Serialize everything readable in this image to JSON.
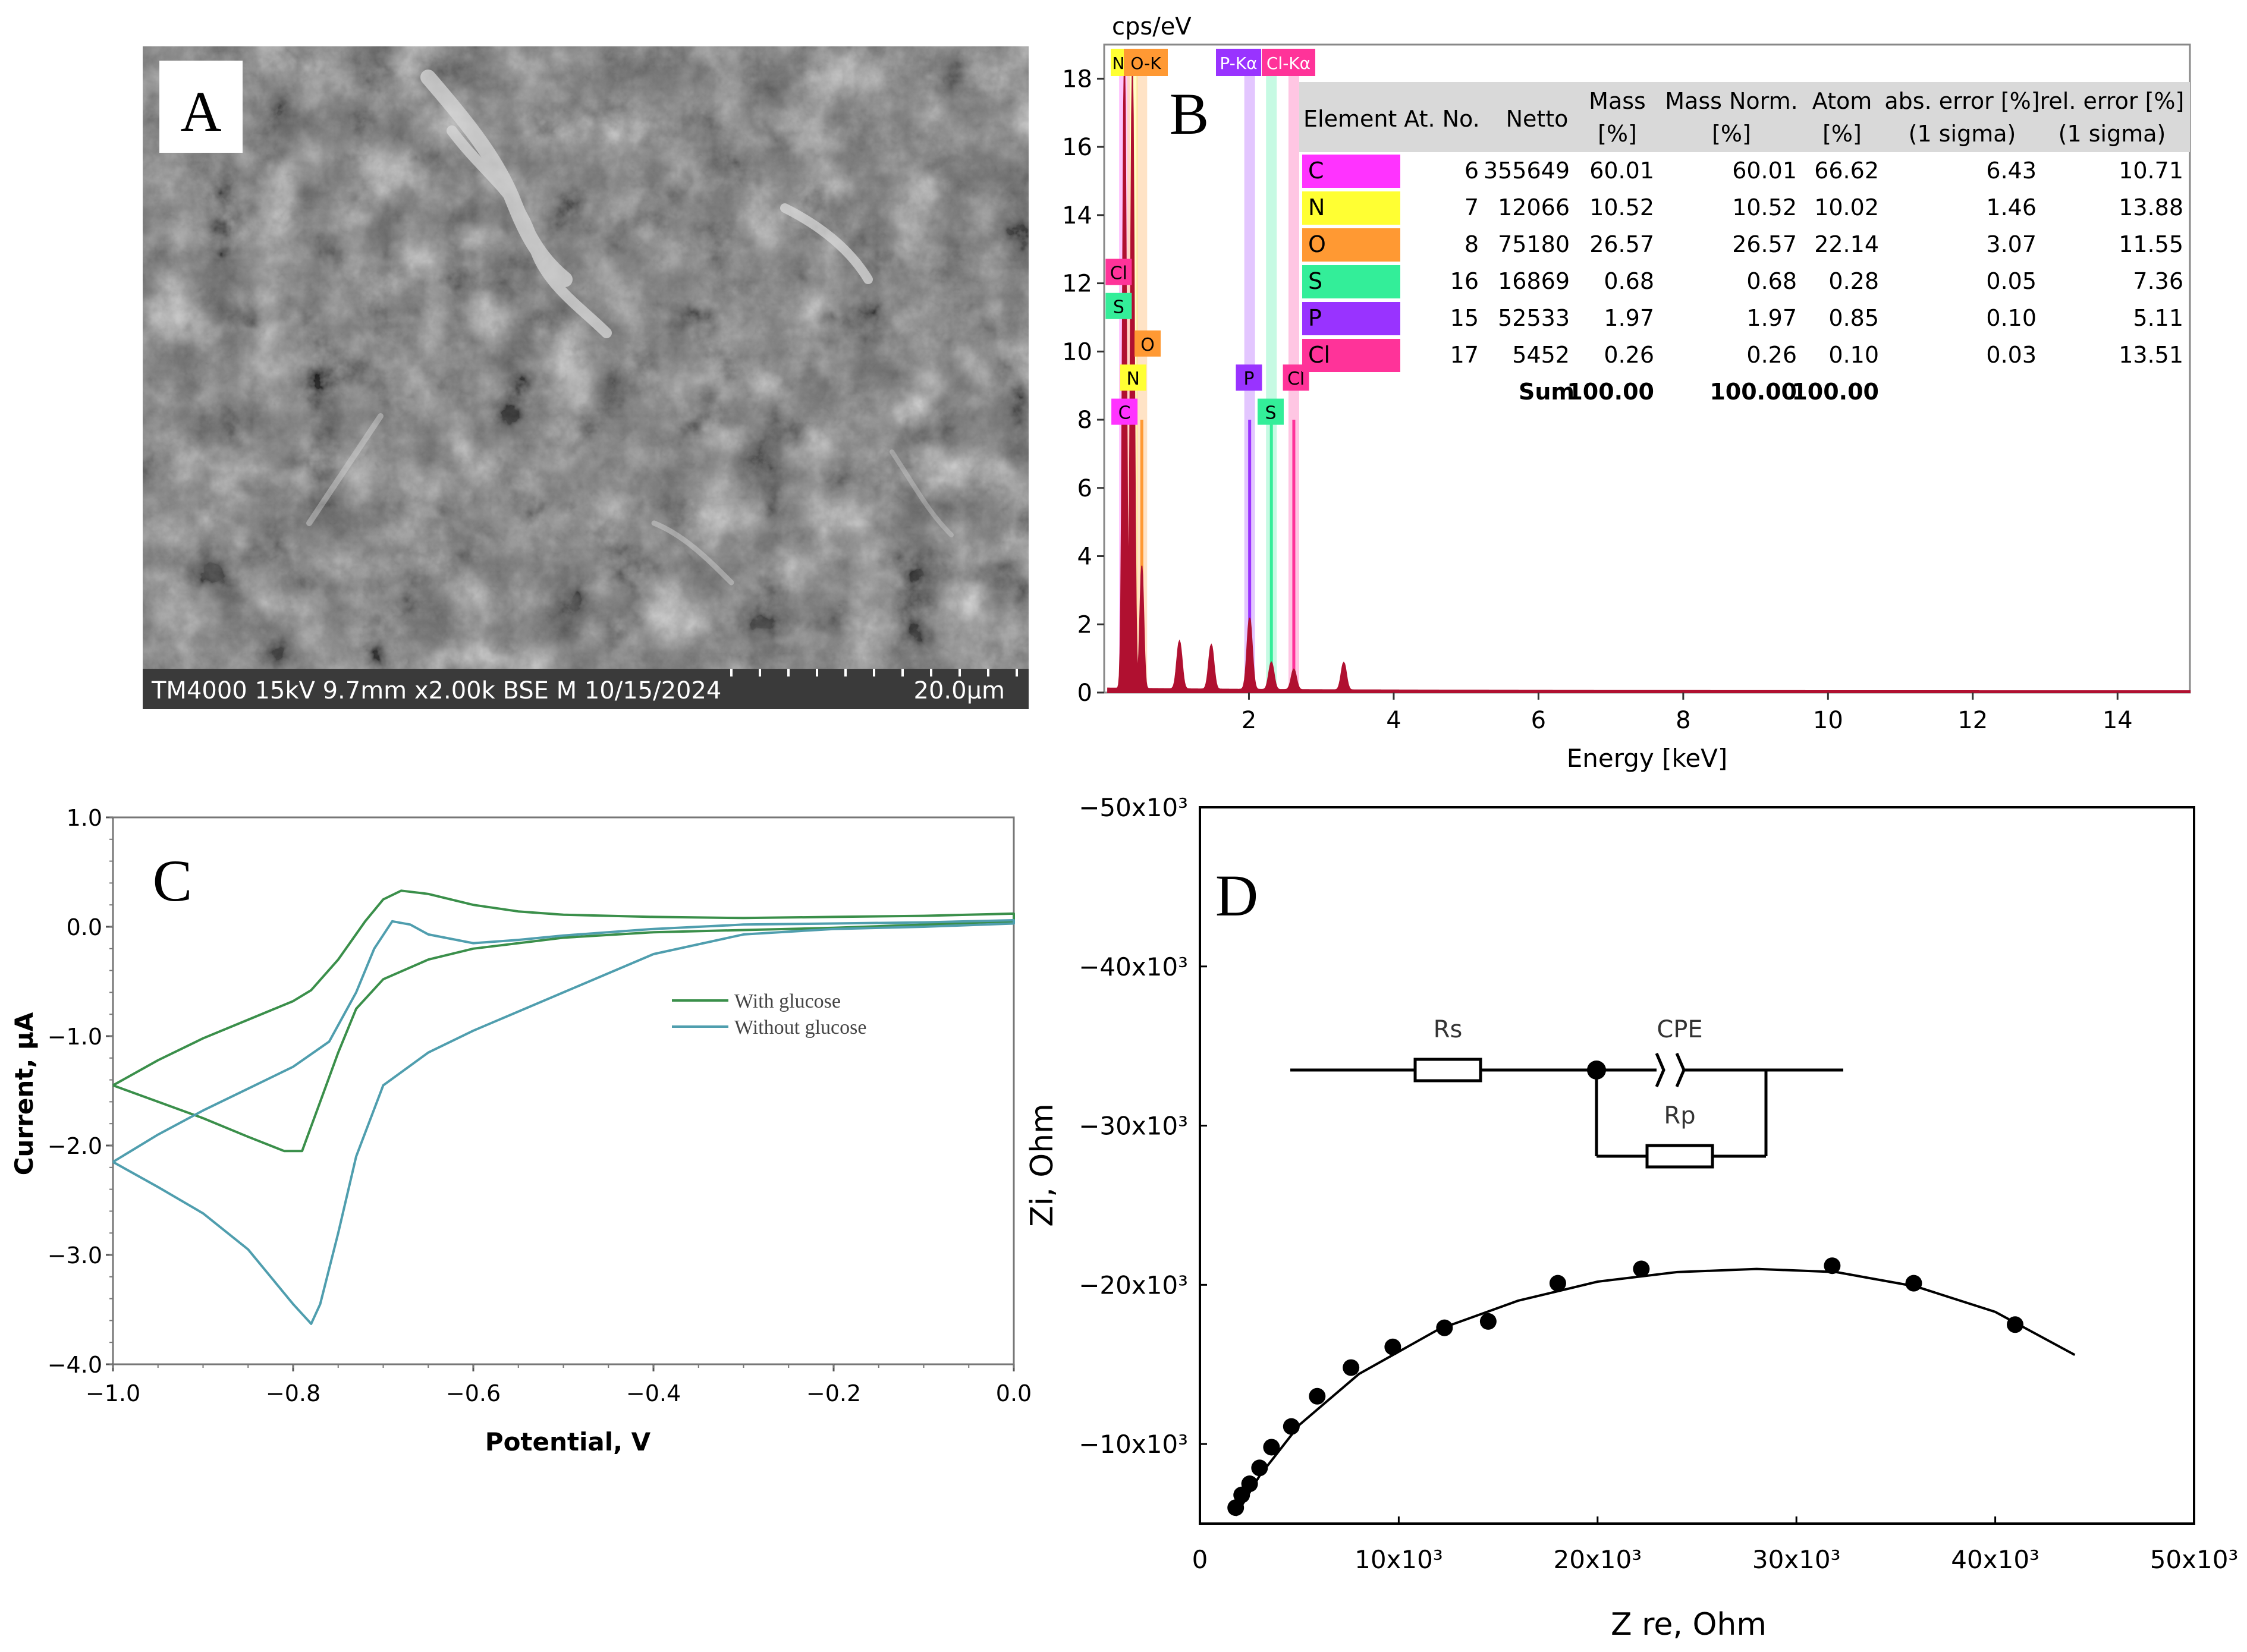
{
  "panels": {
    "A": {
      "label": "A",
      "sem_info": "TM4000 15kV 9.7mm x2.00k BSE M 10/15/2024",
      "scale_bar": "20.0μm"
    },
    "B": {
      "label": "B"
    },
    "C": {
      "label": "C"
    },
    "D": {
      "label": "D"
    }
  },
  "circuit": {
    "rs": "Rs",
    "cpe": "CPE",
    "rp": "Rp"
  },
  "colors": {
    "spectrum_red": "#b01030",
    "c_band": "#ff33ff",
    "n_band": "#ffff33",
    "o_band": "#ff9933",
    "s_band": "#33ee99",
    "p_band": "#9933ff",
    "cl_band": "#ff3399",
    "with_glucose": "#3a8f4a",
    "without_glucose": "#4f9eae"
  },
  "chart_data": [
    {
      "id": "B",
      "type": "area",
      "title": "",
      "ylabel": "cps/eV",
      "xlabel": "Energy [keV]",
      "xlim": [
        0,
        15
      ],
      "ylim": [
        0,
        19
      ],
      "xticks": [
        "2",
        "4",
        "6",
        "8",
        "10",
        "12",
        "14"
      ],
      "yticks": [
        "0",
        "2",
        "4",
        "6",
        "8",
        "10",
        "12",
        "14",
        "16",
        "18"
      ],
      "peaks": [
        {
          "x": 0.28,
          "y": 18.5
        },
        {
          "x": 0.39,
          "y": 18.2
        },
        {
          "x": 0.52,
          "y": 3.6
        },
        {
          "x": 1.04,
          "y": 1.4
        },
        {
          "x": 1.48,
          "y": 1.3
        },
        {
          "x": 2.01,
          "y": 2.1
        },
        {
          "x": 2.31,
          "y": 0.8
        },
        {
          "x": 2.62,
          "y": 0.6
        },
        {
          "x": 3.31,
          "y": 0.8
        }
      ],
      "element_lines": [
        {
          "element": "C",
          "energy": 0.28,
          "color": "#ff33ff"
        },
        {
          "element": "N",
          "energy": 0.39,
          "color": "#ffff33"
        },
        {
          "element": "O",
          "energy": 0.52,
          "color": "#ff9933"
        },
        {
          "element": "P",
          "energy": 2.01,
          "color": "#9933ff"
        },
        {
          "element": "S",
          "energy": 2.31,
          "color": "#33ee99"
        },
        {
          "element": "Cl",
          "energy": 2.62,
          "color": "#ff3399"
        }
      ],
      "top_labels": [
        "N",
        "O-K",
        "P-Kα",
        "Cl-Kα"
      ],
      "marker_labels": [
        {
          "text": "Cl",
          "energy": 0.2,
          "y": 12.3,
          "color": "#ff3399"
        },
        {
          "text": "S",
          "energy": 0.2,
          "y": 11.3,
          "color": "#33ee99"
        },
        {
          "text": "O",
          "energy": 0.6,
          "y": 10.2,
          "color": "#ff9933"
        },
        {
          "text": "N",
          "energy": 0.4,
          "y": 9.2,
          "color": "#ffff33"
        },
        {
          "text": "C",
          "energy": 0.28,
          "y": 8.2,
          "color": "#ff33ff"
        },
        {
          "text": "P",
          "energy": 2.0,
          "y": 9.2,
          "color": "#9933ff"
        },
        {
          "text": "Cl",
          "energy": 2.65,
          "y": 9.2,
          "color": "#ff3399"
        },
        {
          "text": "S",
          "energy": 2.3,
          "y": 8.2,
          "color": "#33ee99"
        }
      ],
      "table": {
        "headers": [
          [
            "Element",
            ""
          ],
          [
            "At. No.",
            ""
          ],
          [
            "Netto",
            ""
          ],
          [
            "Mass",
            "[%]"
          ],
          [
            "Mass Norm.",
            "[%]"
          ],
          [
            "Atom",
            "[%]"
          ],
          [
            "abs. error [%]",
            "(1 sigma)"
          ],
          [
            "rel. error [%]",
            "(1 sigma)"
          ]
        ],
        "rows": [
          {
            "element": "C",
            "color": "#ff33ff",
            "cells": [
              "6",
              "355649",
              "60.01",
              "60.01",
              "66.62",
              "6.43",
              "10.71"
            ]
          },
          {
            "element": "N",
            "color": "#ffff33",
            "cells": [
              "7",
              "12066",
              "10.52",
              "10.52",
              "10.02",
              "1.46",
              "13.88"
            ]
          },
          {
            "element": "O",
            "color": "#ff9933",
            "cells": [
              "8",
              "75180",
              "26.57",
              "26.57",
              "22.14",
              "3.07",
              "11.55"
            ]
          },
          {
            "element": "S",
            "color": "#33ee99",
            "cells": [
              "16",
              "16869",
              "0.68",
              "0.68",
              "0.28",
              "0.05",
              "7.36"
            ]
          },
          {
            "element": "P",
            "color": "#9933ff",
            "cells": [
              "15",
              "52533",
              "1.97",
              "1.97",
              "0.85",
              "0.10",
              "5.11"
            ]
          },
          {
            "element": "Cl",
            "color": "#ff3399",
            "cells": [
              "17",
              "5452",
              "0.26",
              "0.26",
              "0.10",
              "0.03",
              "13.51"
            ]
          }
        ],
        "sum": [
          "Sum",
          "100.00",
          "100.00",
          "100.00"
        ]
      }
    },
    {
      "id": "C",
      "type": "line",
      "title": "",
      "xlabel": "Potential, V",
      "ylabel": "Current, μA",
      "xlim": [
        -1.0,
        0.0
      ],
      "ylim": [
        -4.0,
        1.0
      ],
      "xticks": [
        "−1.0",
        "−0.8",
        "−0.6",
        "−0.4",
        "−0.2",
        "0.0"
      ],
      "yticks": [
        "1.0",
        "0.0",
        "−1.0",
        "−2.0",
        "−3.0",
        "−4.0"
      ],
      "series": [
        {
          "name": "With glucose",
          "color": "#3a8f4a",
          "points": [
            [
              -1.0,
              -1.45
            ],
            [
              -0.95,
              -1.22
            ],
            [
              -0.9,
              -1.02
            ],
            [
              -0.85,
              -0.85
            ],
            [
              -0.8,
              -0.68
            ],
            [
              -0.78,
              -0.58
            ],
            [
              -0.75,
              -0.3
            ],
            [
              -0.72,
              0.05
            ],
            [
              -0.7,
              0.25
            ],
            [
              -0.68,
              0.33
            ],
            [
              -0.65,
              0.3
            ],
            [
              -0.6,
              0.2
            ],
            [
              -0.55,
              0.14
            ],
            [
              -0.5,
              0.11
            ],
            [
              -0.4,
              0.09
            ],
            [
              -0.3,
              0.08
            ],
            [
              -0.2,
              0.09
            ],
            [
              -0.1,
              0.1
            ],
            [
              0.0,
              0.12
            ],
            [
              0.0,
              0.05
            ],
            [
              -0.1,
              0.02
            ],
            [
              -0.2,
              -0.01
            ],
            [
              -0.3,
              -0.03
            ],
            [
              -0.4,
              -0.05
            ],
            [
              -0.5,
              -0.1
            ],
            [
              -0.6,
              -0.2
            ],
            [
              -0.65,
              -0.3
            ],
            [
              -0.7,
              -0.48
            ],
            [
              -0.73,
              -0.75
            ],
            [
              -0.75,
              -1.15
            ],
            [
              -0.77,
              -1.6
            ],
            [
              -0.79,
              -2.05
            ],
            [
              -0.81,
              -2.05
            ],
            [
              -0.85,
              -1.92
            ],
            [
              -0.9,
              -1.75
            ],
            [
              -0.95,
              -1.6
            ],
            [
              -1.0,
              -1.45
            ]
          ]
        },
        {
          "name": "Without glucose",
          "color": "#4f9eae",
          "points": [
            [
              -1.0,
              -2.15
            ],
            [
              -0.95,
              -1.9
            ],
            [
              -0.9,
              -1.68
            ],
            [
              -0.85,
              -1.48
            ],
            [
              -0.8,
              -1.28
            ],
            [
              -0.76,
              -1.05
            ],
            [
              -0.73,
              -0.6
            ],
            [
              -0.71,
              -0.2
            ],
            [
              -0.69,
              0.05
            ],
            [
              -0.67,
              0.02
            ],
            [
              -0.65,
              -0.07
            ],
            [
              -0.6,
              -0.15
            ],
            [
              -0.55,
              -0.12
            ],
            [
              -0.5,
              -0.08
            ],
            [
              -0.4,
              -0.02
            ],
            [
              -0.3,
              0.02
            ],
            [
              -0.2,
              0.03
            ],
            [
              -0.1,
              0.04
            ],
            [
              0.0,
              0.06
            ],
            [
              0.0,
              0.03
            ],
            [
              -0.1,
              0.0
            ],
            [
              -0.2,
              -0.02
            ],
            [
              -0.3,
              -0.07
            ],
            [
              -0.4,
              -0.25
            ],
            [
              -0.5,
              -0.6
            ],
            [
              -0.6,
              -0.95
            ],
            [
              -0.65,
              -1.15
            ],
            [
              -0.7,
              -1.45
            ],
            [
              -0.73,
              -2.1
            ],
            [
              -0.75,
              -2.8
            ],
            [
              -0.77,
              -3.45
            ],
            [
              -0.78,
              -3.63
            ],
            [
              -0.8,
              -3.45
            ],
            [
              -0.85,
              -2.95
            ],
            [
              -0.9,
              -2.62
            ],
            [
              -0.95,
              -2.38
            ],
            [
              -1.0,
              -2.15
            ]
          ]
        }
      ],
      "legend": [
        "With glucose",
        "Without glucose"
      ]
    },
    {
      "id": "D",
      "type": "scatter",
      "title": "",
      "xlabel": "Z re, Ohm",
      "ylabel": "Zi, Ohm",
      "xlim": [
        0,
        50000
      ],
      "ylim": [
        -5000,
        -50000
      ],
      "xticks": [
        "0",
        "10x10³",
        "20x10³",
        "30x10³",
        "40x10³",
        "50x10³"
      ],
      "yticks": [
        "−10x10³",
        "−20x10³",
        "−30x10³",
        "−40x10³",
        "−50x10³"
      ],
      "points": [
        [
          1800,
          -6000
        ],
        [
          2100,
          -6800
        ],
        [
          2500,
          -7500
        ],
        [
          3000,
          -8500
        ],
        [
          3600,
          -9800
        ],
        [
          4600,
          -11100
        ],
        [
          5900,
          -13000
        ],
        [
          7600,
          -14800
        ],
        [
          9700,
          -16100
        ],
        [
          12300,
          -17300
        ],
        [
          14500,
          -17700
        ],
        [
          18000,
          -20100
        ],
        [
          22200,
          -21000
        ],
        [
          31800,
          -21200
        ],
        [
          35900,
          -20100
        ],
        [
          41000,
          -17500
        ]
      ],
      "fit_curve": [
        [
          1800,
          -5500
        ],
        [
          3000,
          -8000
        ],
        [
          5000,
          -11200
        ],
        [
          8000,
          -14400
        ],
        [
          12000,
          -17200
        ],
        [
          16000,
          -19000
        ],
        [
          20000,
          -20200
        ],
        [
          24000,
          -20800
        ],
        [
          28000,
          -21000
        ],
        [
          32000,
          -20800
        ],
        [
          36000,
          -19900
        ],
        [
          40000,
          -18300
        ],
        [
          44000,
          -15600
        ]
      ]
    }
  ]
}
